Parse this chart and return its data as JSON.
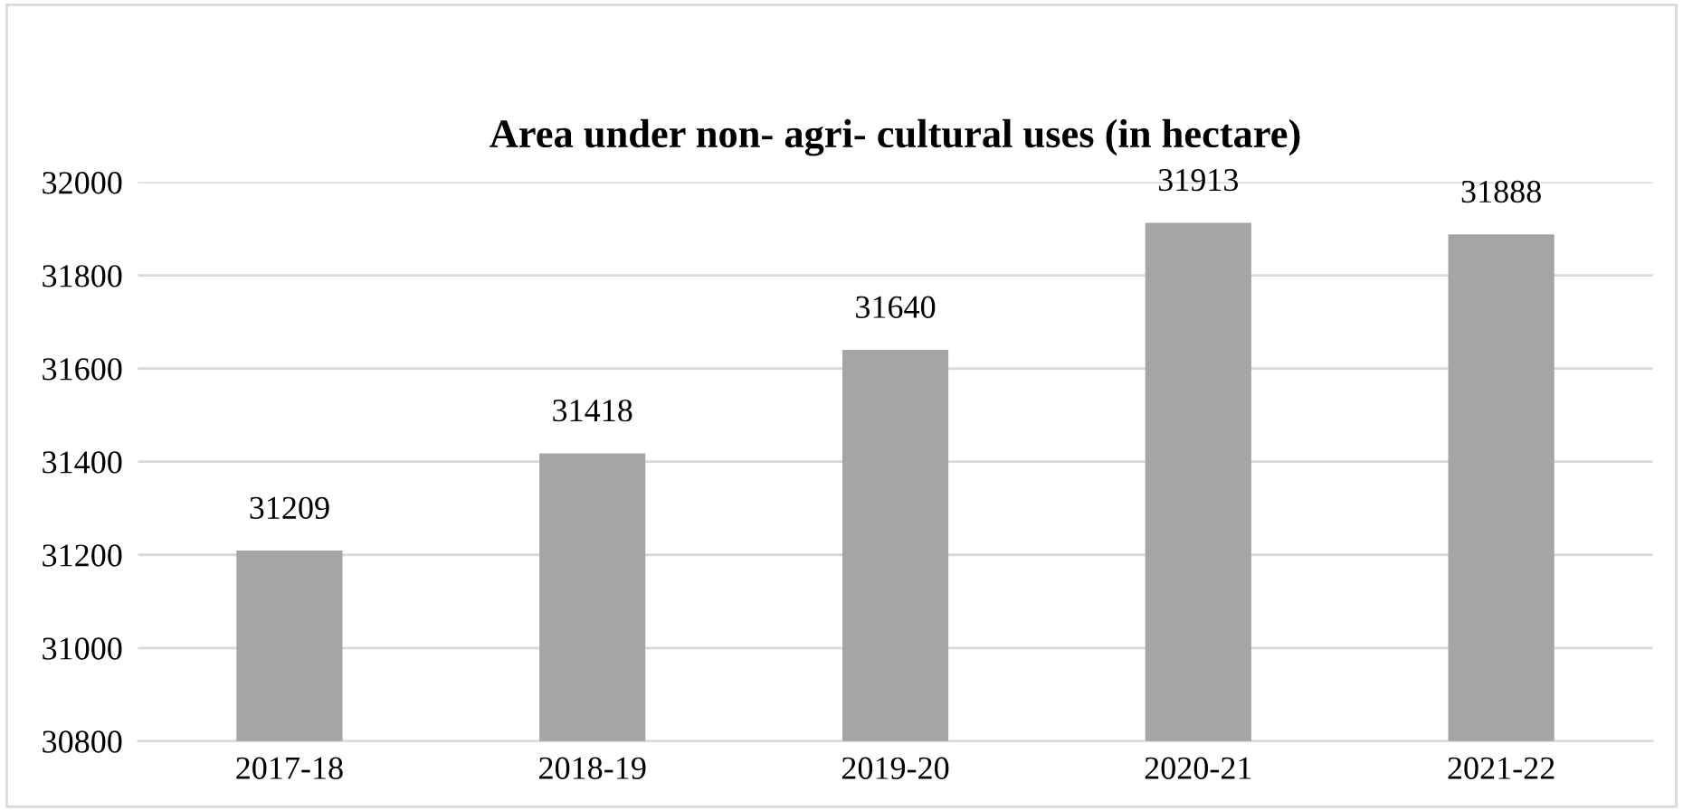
{
  "chart_data": {
    "type": "bar",
    "title": "Area under non- agri- cultural uses (in hectare)",
    "categories": [
      "2017-18",
      "2018-19",
      "2019-20",
      "2020-21",
      "2021-22"
    ],
    "values": [
      31209,
      31418,
      31640,
      31913,
      31888
    ],
    "color": "#a5a5a5",
    "ylim": [
      30800,
      32000
    ],
    "yticks": [
      30800,
      31000,
      31200,
      31400,
      31600,
      31800,
      32000
    ],
    "grid": "y",
    "data_labels": true
  }
}
